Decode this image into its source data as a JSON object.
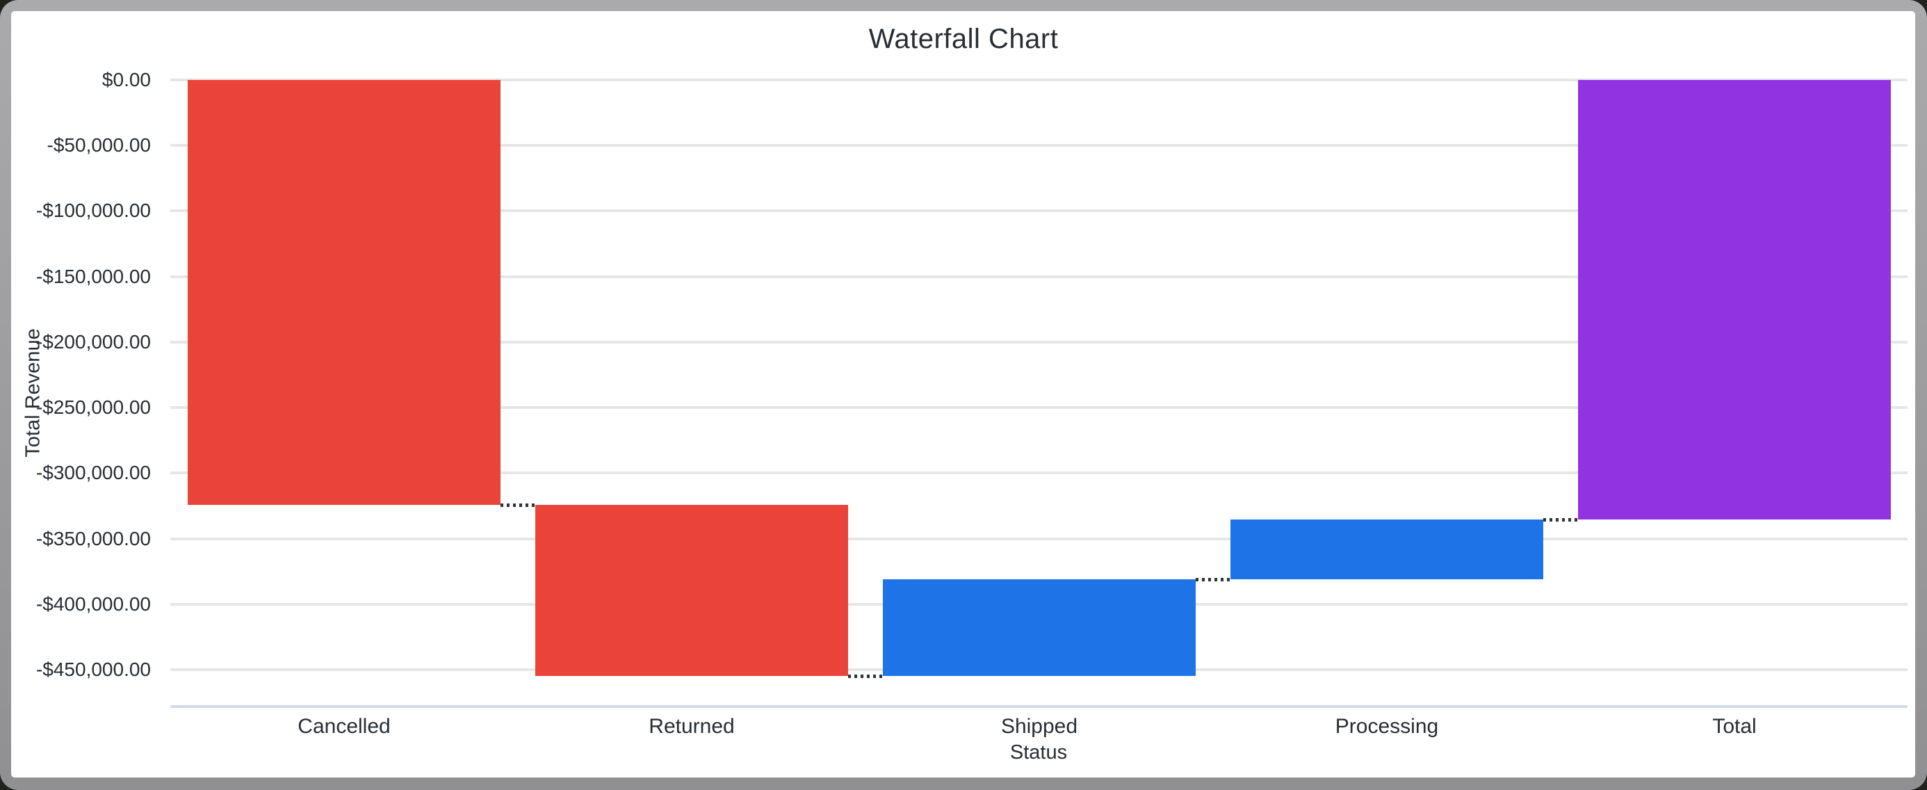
{
  "window": {
    "background_color": "#20231e",
    "frame_color": "#9a9a9c",
    "surface_color": "#ffffff"
  },
  "chart_data": {
    "type": "waterfall",
    "title": "Waterfall Chart",
    "x_axis_label": "Status",
    "y_axis_label": "Total Revenue",
    "categories": [
      "Cancelled",
      "Returned",
      "Shipped",
      "Processing",
      "Total"
    ],
    "series": [
      {
        "label": "Cancelled",
        "kind": "decrease",
        "value": -324200
      },
      {
        "label": "Returned",
        "kind": "decrease",
        "value": -130600
      },
      {
        "label": "Shipped",
        "kind": "increase",
        "value": 73700
      },
      {
        "label": "Processing",
        "kind": "increase",
        "value": 45600
      },
      {
        "label": "Total",
        "kind": "total",
        "value": -335500
      }
    ],
    "y_ticks": [
      {
        "value": 0,
        "label": "$0.00"
      },
      {
        "value": -50000,
        "label": "-$50,000.00"
      },
      {
        "value": -100000,
        "label": "-$100,000.00"
      },
      {
        "value": -150000,
        "label": "-$150,000.00"
      },
      {
        "value": -200000,
        "label": "-$200,000.00"
      },
      {
        "value": -250000,
        "label": "-$250,000.00"
      },
      {
        "value": -300000,
        "label": "-$300,000.00"
      },
      {
        "value": -350000,
        "label": "-$350,000.00"
      },
      {
        "value": -400000,
        "label": "-$400,000.00"
      },
      {
        "value": -450000,
        "label": "-$450,000.00"
      }
    ],
    "ylim": [
      -478000,
      0
    ],
    "grid": true,
    "legend": "none",
    "colors": {
      "decrease": "#e9433a",
      "increase": "#1e73e7",
      "total": "#9233e2"
    },
    "gridline_color": "#e6e6e6",
    "axis_line_color": "#d3dae9",
    "connector_color": "#2e3338",
    "text_color": "#272d35"
  }
}
